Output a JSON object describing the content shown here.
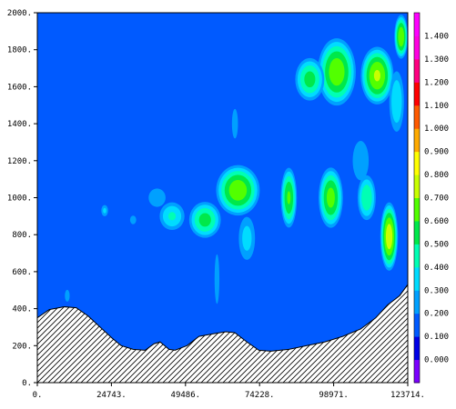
{
  "chart_data": {
    "type": "heatmap",
    "title": "",
    "xlabel": "",
    "ylabel": "",
    "xlim": [
      0,
      123714
    ],
    "ylim": [
      0,
      2000
    ],
    "x_ticks": [
      0,
      24743,
      49486,
      74228,
      98971,
      123714
    ],
    "x_tick_labels": [
      "0.",
      "24743.",
      "49486.",
      "74228.",
      "98971.",
      "123714."
    ],
    "y_ticks": [
      0,
      200,
      400,
      600,
      800,
      1000,
      1200,
      1400,
      1600,
      1800,
      2000
    ],
    "y_tick_labels": [
      "0.",
      "200.",
      "400.",
      "600.",
      "800.",
      "1000.",
      "1200.",
      "1400.",
      "1600.",
      "1800.",
      "2000."
    ],
    "colorbar": {
      "levels": [
        0.0,
        0.1,
        0.2,
        0.3,
        0.4,
        0.5,
        0.6,
        0.7,
        0.8,
        0.9,
        1.0,
        1.1,
        1.2,
        1.3,
        1.4
      ],
      "labels": [
        "0.000",
        "0.100",
        "0.200",
        "0.300",
        "0.400",
        "0.500",
        "0.600",
        "0.700",
        "0.800",
        "0.900",
        "1.000",
        "1.100",
        "1.200",
        "1.300",
        "1.400"
      ],
      "colors": [
        "#7b00ff",
        "#0000e6",
        "#005aff",
        "#00a0ff",
        "#00dcff",
        "#00ffb4",
        "#00e84a",
        "#52ff00",
        "#c8ff00",
        "#ffff00",
        "#ffaa00",
        "#ff5a00",
        "#ff0000",
        "#ff0080",
        "#ff00e0",
        "#ff00ff"
      ]
    },
    "background_level": 0.1,
    "terrain": [
      [
        0,
        350
      ],
      [
        4000,
        395
      ],
      [
        9000,
        410
      ],
      [
        13000,
        405
      ],
      [
        17000,
        360
      ],
      [
        21000,
        300
      ],
      [
        25000,
        240
      ],
      [
        28000,
        200
      ],
      [
        32000,
        180
      ],
      [
        36000,
        175
      ],
      [
        39000,
        210
      ],
      [
        41000,
        220
      ],
      [
        44000,
        180
      ],
      [
        46000,
        175
      ],
      [
        50000,
        200
      ],
      [
        54000,
        250
      ],
      [
        59000,
        265
      ],
      [
        63000,
        275
      ],
      [
        66000,
        270
      ],
      [
        70000,
        220
      ],
      [
        74000,
        175
      ],
      [
        78000,
        170
      ],
      [
        84000,
        180
      ],
      [
        90000,
        200
      ],
      [
        96000,
        220
      ],
      [
        102000,
        250
      ],
      [
        108000,
        290
      ],
      [
        113000,
        350
      ],
      [
        117000,
        420
      ],
      [
        121000,
        470
      ],
      [
        123714,
        530
      ]
    ],
    "features": [
      {
        "x": 113500,
        "y": 1660,
        "rx": 6000,
        "ry": 170,
        "peak": 0.72
      },
      {
        "x": 100000,
        "y": 1680,
        "rx": 7000,
        "ry": 200,
        "peak": 0.68
      },
      {
        "x": 91000,
        "y": 1640,
        "rx": 5500,
        "ry": 130,
        "peak": 0.55
      },
      {
        "x": 121500,
        "y": 1870,
        "rx": 2500,
        "ry": 130,
        "peak": 0.7
      },
      {
        "x": 67000,
        "y": 1040,
        "rx": 8000,
        "ry": 150,
        "peak": 0.68
      },
      {
        "x": 84000,
        "y": 1000,
        "rx": 3000,
        "ry": 180,
        "peak": 0.62
      },
      {
        "x": 98000,
        "y": 1000,
        "rx": 4500,
        "ry": 180,
        "peak": 0.65
      },
      {
        "x": 110000,
        "y": 1000,
        "rx": 3500,
        "ry": 140,
        "peak": 0.5
      },
      {
        "x": 117500,
        "y": 790,
        "rx": 3200,
        "ry": 200,
        "peak": 0.78
      },
      {
        "x": 56000,
        "y": 880,
        "rx": 6000,
        "ry": 110,
        "peak": 0.55
      },
      {
        "x": 45000,
        "y": 900,
        "rx": 5000,
        "ry": 90,
        "peak": 0.42
      },
      {
        "x": 40000,
        "y": 1000,
        "rx": 4000,
        "ry": 70,
        "peak": 0.3
      },
      {
        "x": 70000,
        "y": 780,
        "rx": 3500,
        "ry": 150,
        "peak": 0.35
      },
      {
        "x": 66000,
        "y": 1400,
        "rx": 1500,
        "ry": 120,
        "peak": 0.28
      },
      {
        "x": 22500,
        "y": 930,
        "rx": 1500,
        "ry": 40,
        "peak": 0.33
      },
      {
        "x": 32000,
        "y": 880,
        "rx": 1800,
        "ry": 40,
        "peak": 0.25
      },
      {
        "x": 60000,
        "y": 560,
        "rx": 1500,
        "ry": 250,
        "peak": 0.24
      },
      {
        "x": 108000,
        "y": 1200,
        "rx": 5000,
        "ry": 200,
        "peak": 0.24
      },
      {
        "x": 120000,
        "y": 1520,
        "rx": 3000,
        "ry": 200,
        "peak": 0.4
      },
      {
        "x": 10000,
        "y": 470,
        "rx": 1500,
        "ry": 60,
        "peak": 0.24
      }
    ]
  }
}
